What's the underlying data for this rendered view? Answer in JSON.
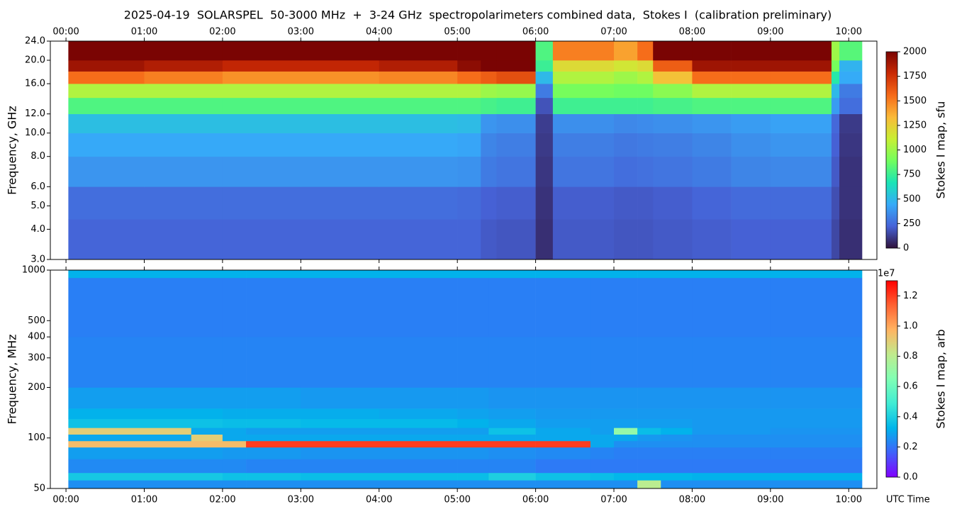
{
  "chart_data": [
    {
      "type": "heatmap",
      "title": "2025-04-19  SOLARSPEL  50-3000 MHz  +  3-24 GHz  spectropolarimeters combined data,  Stokes I  (calibration preliminary)",
      "ylabel": "Frequency, GHz",
      "colorbar_label": "Stokes I map, sfu",
      "xlim": [
        -0.2,
        10.36
      ],
      "xticks": [
        {
          "value": 0,
          "label": "00:00"
        },
        {
          "value": 1,
          "label": "01:00"
        },
        {
          "value": 2,
          "label": "02:00"
        },
        {
          "value": 3,
          "label": "03:00"
        },
        {
          "value": 4,
          "label": "04:00"
        },
        {
          "value": 5,
          "label": "05:00"
        },
        {
          "value": 6,
          "label": "06:00"
        },
        {
          "value": 7,
          "label": "07:00"
        },
        {
          "value": 8,
          "label": "08:00"
        },
        {
          "value": 9,
          "label": "09:00"
        },
        {
          "value": 10,
          "label": "10:00"
        }
      ],
      "ylim": [
        3,
        24
      ],
      "yscale": "log",
      "yticks": [
        {
          "value": 3,
          "label": "3.0"
        },
        {
          "value": 4,
          "label": "4.0"
        },
        {
          "value": 5,
          "label": "5.0"
        },
        {
          "value": 6,
          "label": "6.0"
        },
        {
          "value": 8,
          "label": "8.0"
        },
        {
          "value": 10,
          "label": "10.0"
        },
        {
          "value": 12,
          "label": "12.0"
        },
        {
          "value": 16,
          "label": "16.0"
        },
        {
          "value": 20,
          "label": "20.0"
        },
        {
          "value": 24,
          "label": "24.0"
        }
      ],
      "clim": [
        0,
        2000
      ],
      "cticks": [
        0,
        250,
        500,
        750,
        1000,
        1250,
        1500,
        1750,
        2000
      ],
      "colormap": [
        "#30123b",
        "#4662d7",
        "#36aaf9",
        "#1ae4b6",
        "#72fe5e",
        "#c8ef34",
        "#faba39",
        "#f66b19",
        "#ca2a04",
        "#7a0403"
      ],
      "x_edges": [
        0.03,
        1,
        2,
        3,
        4,
        5,
        5.3,
        5.5,
        6.0,
        6.22,
        7.0,
        7.3,
        7.5,
        8,
        8.5,
        9,
        9.78,
        9.88,
        10.17
      ],
      "y_edges": [
        3,
        4.4,
        6,
        8,
        10,
        12,
        14,
        16,
        18,
        20,
        24
      ],
      "z": [
        [
          230,
          230,
          230,
          230,
          230,
          230,
          200,
          190,
          80,
          200,
          190,
          190,
          200,
          210,
          220,
          220,
          150,
          80
        ],
        [
          260,
          260,
          260,
          260,
          260,
          250,
          220,
          210,
          90,
          210,
          200,
          200,
          210,
          230,
          250,
          250,
          170,
          90
        ],
        [
          380,
          380,
          380,
          380,
          380,
          370,
          300,
          280,
          100,
          280,
          260,
          270,
          280,
          300,
          330,
          340,
          200,
          90
        ],
        [
          440,
          440,
          440,
          440,
          440,
          430,
          330,
          310,
          110,
          310,
          290,
          300,
          310,
          330,
          360,
          380,
          220,
          100
        ],
        [
          520,
          520,
          520,
          520,
          520,
          510,
          380,
          360,
          120,
          360,
          340,
          350,
          360,
          380,
          400,
          420,
          240,
          110
        ],
        [
          800,
          800,
          800,
          800,
          800,
          800,
          780,
          760,
          180,
          760,
          760,
          760,
          780,
          800,
          800,
          800,
          400,
          260
        ],
        [
          1050,
          1050,
          1050,
          1050,
          1050,
          1050,
          1000,
          980,
          300,
          900,
          880,
          880,
          950,
          1050,
          1050,
          1050,
          500,
          300
        ],
        [
          1550,
          1500,
          1450,
          1450,
          1480,
          1550,
          1600,
          1650,
          500,
          1050,
          1000,
          1050,
          1300,
          1550,
          1550,
          1550,
          700,
          450
        ],
        [
          1900,
          1850,
          1800,
          1800,
          1850,
          1950,
          2000,
          2000,
          750,
          1200,
          1150,
          1200,
          1600,
          1900,
          1900,
          1900,
          900,
          480
        ],
        [
          2000,
          2000,
          2000,
          2000,
          2000,
          2000,
          2000,
          2000,
          800,
          1500,
          1400,
          1550,
          2000,
          2000,
          2000,
          2000,
          1000,
          820
        ]
      ]
    },
    {
      "type": "heatmap",
      "ylabel": "Frequency, MHz",
      "xlabel": "UTC Time",
      "colorbar_label": "Stokes I map, arb",
      "colorbar_offset": "1e7",
      "xlim": [
        -0.2,
        10.36
      ],
      "xticks": [
        {
          "value": 0,
          "label": "00:00"
        },
        {
          "value": 1,
          "label": "01:00"
        },
        {
          "value": 2,
          "label": "02:00"
        },
        {
          "value": 3,
          "label": "03:00"
        },
        {
          "value": 4,
          "label": "04:00"
        },
        {
          "value": 5,
          "label": "05:00"
        },
        {
          "value": 6,
          "label": "06:00"
        },
        {
          "value": 7,
          "label": "07:00"
        },
        {
          "value": 8,
          "label": "08:00"
        },
        {
          "value": 9,
          "label": "09:00"
        },
        {
          "value": 10,
          "label": "10:00"
        }
      ],
      "ylim": [
        50,
        1000
      ],
      "yscale": "log",
      "yticks": [
        50,
        100,
        200,
        300,
        400,
        500,
        1000
      ],
      "clim": [
        0,
        13000000
      ],
      "cticks": [
        {
          "value": 0,
          "label": "0.0"
        },
        {
          "value": 2000000,
          "label": "0.2"
        },
        {
          "value": 4000000,
          "label": "0.4"
        },
        {
          "value": 6000000,
          "label": "0.6"
        },
        {
          "value": 8000000,
          "label": "0.8"
        },
        {
          "value": 10000000,
          "label": "1.0"
        },
        {
          "value": 12000000,
          "label": "1.2"
        }
      ],
      "colormap": [
        "#8000ff",
        "#4062fa",
        "#00b5eb",
        "#40ecd4",
        "#80ffb4",
        "#c0eb8d",
        "#ffb462",
        "#ff6232",
        "#ff0000"
      ],
      "x_edges": [
        0.03,
        1,
        1.6,
        2,
        2.3,
        3,
        4,
        5,
        5.4,
        6,
        6.7,
        7,
        7.3,
        7.6,
        8,
        9,
        10.17
      ],
      "y_edges": [
        50,
        56,
        62,
        75,
        88,
        96,
        105,
        115,
        130,
        150,
        200,
        400,
        900,
        1000
      ],
      "z": [
        [
          2500000,
          2500000,
          2500000,
          2500000,
          2500000,
          2500000,
          2500000,
          2500000,
          2500000,
          2500000,
          2500000,
          2500000,
          8000000,
          2500000,
          2500000,
          2500000
        ],
        [
          3800000,
          3800000,
          3800000,
          3600000,
          3600000,
          3500000,
          3500000,
          3500000,
          4000000,
          3600000,
          3500000,
          3300000,
          3300000,
          3300000,
          3200000,
          3200000
        ],
        [
          2400000,
          2400000,
          2400000,
          2400000,
          2300000,
          2300000,
          2300000,
          2300000,
          2300000,
          2100000,
          2100000,
          2100000,
          2100000,
          2100000,
          2100000,
          2100000
        ],
        [
          2800000,
          2800000,
          2800000,
          2700000,
          2700000,
          2600000,
          2600000,
          2600000,
          2500000,
          2400000,
          2300000,
          2200000,
          2200000,
          2200000,
          2200000,
          2200000
        ],
        [
          9500000,
          9500000,
          9500000,
          9500000,
          12000000,
          12000000,
          12000000,
          12000000,
          12000000,
          12000000,
          3000000,
          2500000,
          2500000,
          2500000,
          2500000,
          2500000
        ],
        [
          3000000,
          3000000,
          9000000,
          3000000,
          3000000,
          3000000,
          3000000,
          3000000,
          3000000,
          3000000,
          3000000,
          3000000,
          2700000,
          2600000,
          2500000,
          2500000
        ],
        [
          9000000,
          9000000,
          3000000,
          3000000,
          2800000,
          2800000,
          2800000,
          2800000,
          3600000,
          3000000,
          2800000,
          7000000,
          3500000,
          3200000,
          2700000,
          2600000
        ],
        [
          3600000,
          3600000,
          3600000,
          3500000,
          3500000,
          3400000,
          3400000,
          3200000,
          3000000,
          2800000,
          2800000,
          2800000,
          2800000,
          2800000,
          2700000,
          2700000
        ],
        [
          3200000,
          3200000,
          3200000,
          3100000,
          3100000,
          3100000,
          3000000,
          2900000,
          2800000,
          2700000,
          2700000,
          2700000,
          2700000,
          2700000,
          2700000,
          2700000
        ],
        [
          2800000,
          2800000,
          2800000,
          2800000,
          2800000,
          2700000,
          2700000,
          2700000,
          2600000,
          2600000,
          2600000,
          2600000,
          2600000,
          2600000,
          2600000,
          2600000
        ],
        [
          2300000,
          2300000,
          2300000,
          2300000,
          2300000,
          2300000,
          2300000,
          2300000,
          2300000,
          2300000,
          2300000,
          2300000,
          2300000,
          2300000,
          2300000,
          2300000
        ],
        [
          2200000,
          2200000,
          2200000,
          2200000,
          2200000,
          2200000,
          2200000,
          2200000,
          2200000,
          2200000,
          2200000,
          2200000,
          2200000,
          2200000,
          2200000,
          2200000
        ],
        [
          3200000,
          3200000,
          3200000,
          3200000,
          3200000,
          3200000,
          3200000,
          3200000,
          3200000,
          3200000,
          3200000,
          3200000,
          3200000,
          3200000,
          3200000,
          3200000
        ]
      ]
    }
  ]
}
